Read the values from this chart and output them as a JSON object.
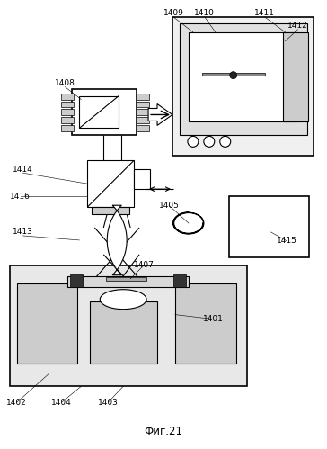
{
  "title": "Фиг.21",
  "bg_color": "#ffffff",
  "line_color": "#000000",
  "gray_light": "#d4d4d4",
  "gray_medium": "#b0b0b0",
  "gray_dark": "#555555"
}
